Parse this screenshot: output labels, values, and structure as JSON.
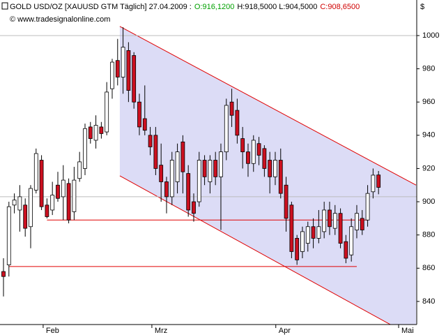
{
  "chart_data": {
    "type": "candlestick",
    "title": "GOLD USD/OZ [XAUUSD GTM  Täglich] 27.04.2009 :",
    "quote": {
      "open": "O:916,1200",
      "high_low": "H:918,5000 L:904,5000",
      "close": "C:908,6500"
    },
    "source": "© www.tradesignalonline.com",
    "unit": "$",
    "up_color": "#ffffff",
    "down_color": "#cc1020",
    "x": [
      0,
      1,
      2,
      3,
      4,
      5,
      6,
      7,
      8,
      9,
      10,
      11,
      12,
      13,
      14,
      15,
      16,
      17,
      18,
      19,
      20,
      21,
      22,
      23,
      24,
      25,
      26,
      27,
      28,
      29,
      30,
      31,
      32,
      33,
      34,
      35,
      36,
      37,
      38,
      39,
      40,
      41,
      42,
      43,
      44,
      45,
      46,
      47,
      48,
      49,
      50,
      51,
      52,
      53,
      54,
      55,
      56,
      57,
      58,
      59,
      60,
      61,
      62,
      63,
      64,
      65,
      66,
      67,
      68,
      69
    ],
    "open": [
      858,
      862,
      898,
      895,
      898,
      885,
      907,
      925,
      898,
      895,
      910,
      903,
      911,
      894,
      914,
      920,
      945,
      937,
      945,
      942,
      968,
      985,
      975,
      991,
      988,
      960,
      950,
      940,
      940,
      922,
      912,
      903,
      912,
      936,
      917,
      900,
      900,
      925,
      912,
      925,
      915,
      930,
      960,
      955,
      938,
      930,
      923,
      935,
      932,
      925,
      915,
      925,
      910,
      898,
      878,
      870,
      875,
      885,
      878,
      882,
      895,
      884,
      893,
      876,
      868,
      883,
      890,
      889,
      906,
      916.12
    ],
    "high": [
      866,
      900,
      905,
      910,
      902,
      910,
      932,
      928,
      902,
      912,
      918,
      922,
      914,
      921,
      930,
      947,
      948,
      952,
      948,
      972,
      986,
      998,
      1005,
      996,
      990,
      965,
      970,
      945,
      945,
      935,
      915,
      930,
      935,
      940,
      922,
      905,
      930,
      928,
      928,
      930,
      935,
      962,
      968,
      962,
      945,
      935,
      940,
      939,
      934,
      930,
      930,
      932,
      915,
      900,
      880,
      885,
      888,
      890,
      895,
      900,
      900,
      898,
      896,
      880,
      890,
      898,
      895,
      910,
      920,
      918.5
    ],
    "low": [
      843,
      855,
      893,
      882,
      879,
      872,
      905,
      895,
      890,
      892,
      900,
      889,
      887,
      889,
      912,
      916,
      935,
      932,
      938,
      940,
      962,
      970,
      965,
      960,
      956,
      940,
      940,
      928,
      916,
      900,
      893,
      898,
      905,
      905,
      891,
      888,
      897,
      910,
      905,
      910,
      883,
      925,
      945,
      935,
      920,
      915,
      918,
      922,
      915,
      905,
      910,
      902,
      882,
      866,
      862,
      866,
      870,
      872,
      875,
      878,
      880,
      880,
      872,
      863,
      864,
      878,
      880,
      885,
      902,
      904.5
    ],
    "close": [
      855,
      897,
      901,
      903,
      884,
      908,
      929,
      897,
      891,
      904,
      902,
      913,
      889,
      913,
      924,
      944,
      938,
      946,
      941,
      966,
      984,
      975,
      993,
      967,
      960,
      945,
      943,
      933,
      920,
      912,
      903,
      925,
      930,
      918,
      895,
      893,
      925,
      915,
      925,
      915,
      930,
      958,
      952,
      940,
      930,
      923,
      937,
      928,
      920,
      915,
      925,
      905,
      890,
      870,
      865,
      882,
      885,
      878,
      885,
      895,
      885,
      893,
      875,
      866,
      885,
      893,
      883,
      905,
      916,
      908.65
    ],
    "xlim": [
      -0.64,
      76.03
    ],
    "ylim": [
      826.1,
      1021.4
    ],
    "xticks": [
      {
        "value": 7.3,
        "label": "Feb"
      },
      {
        "value": 27.3,
        "label": "Mrz"
      },
      {
        "value": 50.1,
        "label": "Apr"
      },
      {
        "value": 72.7,
        "label": "Mai"
      }
    ],
    "yticks": [
      840,
      860,
      880,
      900,
      920,
      940,
      960,
      980,
      1000
    ],
    "reference_lines": [
      1000,
      903
    ],
    "channel": {
      "x": [
        21.4,
        75.9
      ],
      "upper": [
        1005.5,
        910
      ],
      "lower": [
        915.6,
        817.6
      ],
      "color": "#e00000",
      "fill": "#dcdcf6"
    },
    "levels": [
      {
        "value": 889,
        "x": [
          8,
          67
        ]
      },
      {
        "value": 861,
        "x": [
          1,
          65
        ]
      }
    ]
  }
}
